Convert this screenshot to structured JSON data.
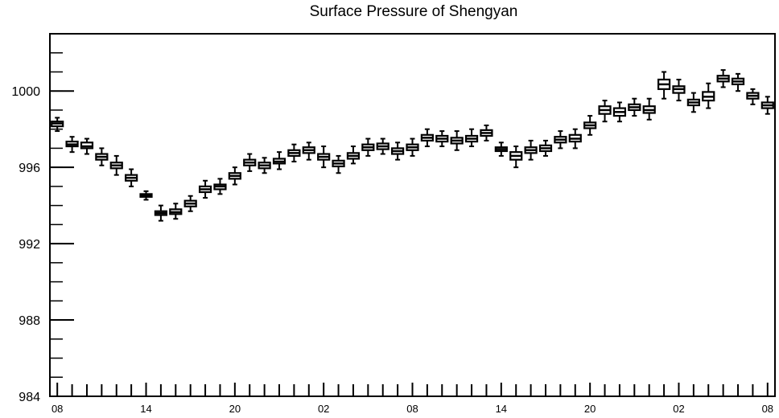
{
  "chart_data": {
    "type": "box",
    "title": "Surface Pressure of Shengyan",
    "xlabel": "",
    "ylabel": "",
    "ylim": [
      984,
      1003
    ],
    "xlim": [
      -0.5,
      48.5
    ],
    "grid": false,
    "legend": "none",
    "y_ticks": [
      984,
      988,
      992,
      996,
      1000
    ],
    "y_tick_labels": [
      "984",
      "988",
      "992",
      "996",
      "1000"
    ],
    "x_ticks": [
      0,
      6,
      12,
      18,
      24,
      30,
      36,
      42,
      48
    ],
    "x_tick_labels": [
      "08",
      "14",
      "20",
      "02",
      "08",
      "14",
      "20",
      "02",
      "08"
    ],
    "boxes": [
      {
        "x": 0,
        "min": 997.9,
        "q1": 998.15,
        "median": 998.3,
        "q3": 998.4,
        "max": 998.6
      },
      {
        "x": 1,
        "min": 996.8,
        "q1": 997.1,
        "median": 997.2,
        "q3": 997.35,
        "max": 997.6
      },
      {
        "x": 2,
        "min": 996.7,
        "q1": 997.0,
        "median": 997.1,
        "q3": 997.3,
        "max": 997.5
      },
      {
        "x": 3,
        "min": 996.1,
        "q1": 996.4,
        "median": 996.55,
        "q3": 996.7,
        "max": 997.0
      },
      {
        "x": 4,
        "min": 995.6,
        "q1": 995.95,
        "median": 996.1,
        "q3": 996.25,
        "max": 996.6
      },
      {
        "x": 5,
        "min": 995.0,
        "q1": 995.3,
        "median": 995.45,
        "q3": 995.6,
        "max": 995.9
      },
      {
        "x": 6,
        "min": 994.3,
        "q1": 994.45,
        "median": 994.5,
        "q3": 994.6,
        "max": 994.75
      },
      {
        "x": 7,
        "min": 993.2,
        "q1": 993.5,
        "median": 993.6,
        "q3": 993.7,
        "max": 994.0
      },
      {
        "x": 8,
        "min": 993.3,
        "q1": 993.55,
        "median": 993.65,
        "q3": 993.8,
        "max": 994.1
      },
      {
        "x": 9,
        "min": 993.7,
        "q1": 993.95,
        "median": 994.1,
        "q3": 994.25,
        "max": 994.5
      },
      {
        "x": 10,
        "min": 994.4,
        "q1": 994.7,
        "median": 994.85,
        "q3": 995.0,
        "max": 995.3
      },
      {
        "x": 11,
        "min": 994.6,
        "q1": 994.85,
        "median": 995.0,
        "q3": 995.1,
        "max": 995.4
      },
      {
        "x": 12,
        "min": 995.1,
        "q1": 995.4,
        "median": 995.55,
        "q3": 995.7,
        "max": 996.0
      },
      {
        "x": 13,
        "min": 995.8,
        "q1": 996.1,
        "median": 996.25,
        "q3": 996.4,
        "max": 996.7
      },
      {
        "x": 14,
        "min": 995.7,
        "q1": 995.95,
        "median": 996.1,
        "q3": 996.25,
        "max": 996.5
      },
      {
        "x": 15,
        "min": 995.9,
        "q1": 996.2,
        "median": 996.3,
        "q3": 996.45,
        "max": 996.8
      },
      {
        "x": 16,
        "min": 996.3,
        "q1": 996.6,
        "median": 996.75,
        "q3": 996.9,
        "max": 997.2
      },
      {
        "x": 17,
        "min": 996.4,
        "q1": 996.75,
        "median": 996.9,
        "q3": 997.05,
        "max": 997.3
      },
      {
        "x": 18,
        "min": 996.0,
        "q1": 996.4,
        "median": 996.55,
        "q3": 996.7,
        "max": 997.1
      },
      {
        "x": 19,
        "min": 995.7,
        "q1": 996.05,
        "median": 996.2,
        "q3": 996.35,
        "max": 996.6
      },
      {
        "x": 20,
        "min": 996.2,
        "q1": 996.45,
        "median": 996.6,
        "q3": 996.75,
        "max": 997.1
      },
      {
        "x": 21,
        "min": 996.6,
        "q1": 996.9,
        "median": 997.05,
        "q3": 997.2,
        "max": 997.5
      },
      {
        "x": 22,
        "min": 996.7,
        "q1": 996.95,
        "median": 997.1,
        "q3": 997.25,
        "max": 997.5
      },
      {
        "x": 23,
        "min": 996.4,
        "q1": 996.7,
        "median": 996.85,
        "q3": 997.0,
        "max": 997.3
      },
      {
        "x": 24,
        "min": 996.6,
        "q1": 996.9,
        "median": 997.05,
        "q3": 997.2,
        "max": 997.5
      },
      {
        "x": 25,
        "min": 997.1,
        "q1": 997.4,
        "median": 997.55,
        "q3": 997.7,
        "max": 998.0
      },
      {
        "x": 26,
        "min": 997.1,
        "q1": 997.35,
        "median": 997.5,
        "q3": 997.65,
        "max": 997.9
      },
      {
        "x": 27,
        "min": 996.9,
        "q1": 997.25,
        "median": 997.4,
        "q3": 997.55,
        "max": 997.9
      },
      {
        "x": 28,
        "min": 997.1,
        "q1": 997.35,
        "median": 997.5,
        "q3": 997.65,
        "max": 998.0
      },
      {
        "x": 29,
        "min": 997.4,
        "q1": 997.65,
        "median": 997.8,
        "q3": 997.95,
        "max": 998.2
      },
      {
        "x": 30,
        "min": 996.6,
        "q1": 996.85,
        "median": 996.95,
        "q3": 997.05,
        "max": 997.3
      },
      {
        "x": 31,
        "min": 996.0,
        "q1": 996.4,
        "median": 996.6,
        "q3": 996.8,
        "max": 997.1
      },
      {
        "x": 32,
        "min": 996.4,
        "q1": 996.75,
        "median": 996.9,
        "q3": 997.05,
        "max": 997.4
      },
      {
        "x": 33,
        "min": 996.6,
        "q1": 996.85,
        "median": 997.0,
        "q3": 997.15,
        "max": 997.4
      },
      {
        "x": 34,
        "min": 997.0,
        "q1": 997.3,
        "median": 997.45,
        "q3": 997.6,
        "max": 997.9
      },
      {
        "x": 35,
        "min": 997.0,
        "q1": 997.35,
        "median": 997.5,
        "q3": 997.7,
        "max": 998.0
      },
      {
        "x": 36,
        "min": 997.7,
        "q1": 998.05,
        "median": 998.2,
        "q3": 998.35,
        "max": 998.7
      },
      {
        "x": 37,
        "min": 998.4,
        "q1": 998.8,
        "median": 999.0,
        "q3": 999.2,
        "max": 999.5
      },
      {
        "x": 38,
        "min": 998.4,
        "q1": 998.7,
        "median": 998.9,
        "q3": 999.1,
        "max": 999.4
      },
      {
        "x": 39,
        "min": 998.7,
        "q1": 999.0,
        "median": 999.15,
        "q3": 999.3,
        "max": 999.6
      },
      {
        "x": 40,
        "min": 998.5,
        "q1": 998.85,
        "median": 999.0,
        "q3": 999.2,
        "max": 999.6
      },
      {
        "x": 41,
        "min": 999.6,
        "q1": 1000.1,
        "median": 1000.35,
        "q3": 1000.6,
        "max": 1001.0
      },
      {
        "x": 42,
        "min": 999.5,
        "q1": 999.9,
        "median": 1000.1,
        "q3": 1000.25,
        "max": 1000.6
      },
      {
        "x": 43,
        "min": 998.9,
        "q1": 999.25,
        "median": 999.4,
        "q3": 999.55,
        "max": 999.9
      },
      {
        "x": 44,
        "min": 999.1,
        "q1": 999.5,
        "median": 999.7,
        "q3": 999.95,
        "max": 1000.4
      },
      {
        "x": 45,
        "min": 1000.2,
        "q1": 1000.5,
        "median": 1000.65,
        "q3": 1000.8,
        "max": 1001.1
      },
      {
        "x": 46,
        "min": 1000.0,
        "q1": 1000.35,
        "median": 1000.5,
        "q3": 1000.65,
        "max": 1000.9
      },
      {
        "x": 47,
        "min": 999.3,
        "q1": 999.6,
        "median": 999.75,
        "q3": 999.9,
        "max": 1000.1
      },
      {
        "x": 48,
        "min": 998.8,
        "q1": 999.1,
        "median": 999.25,
        "q3": 999.4,
        "max": 999.7
      }
    ]
  }
}
